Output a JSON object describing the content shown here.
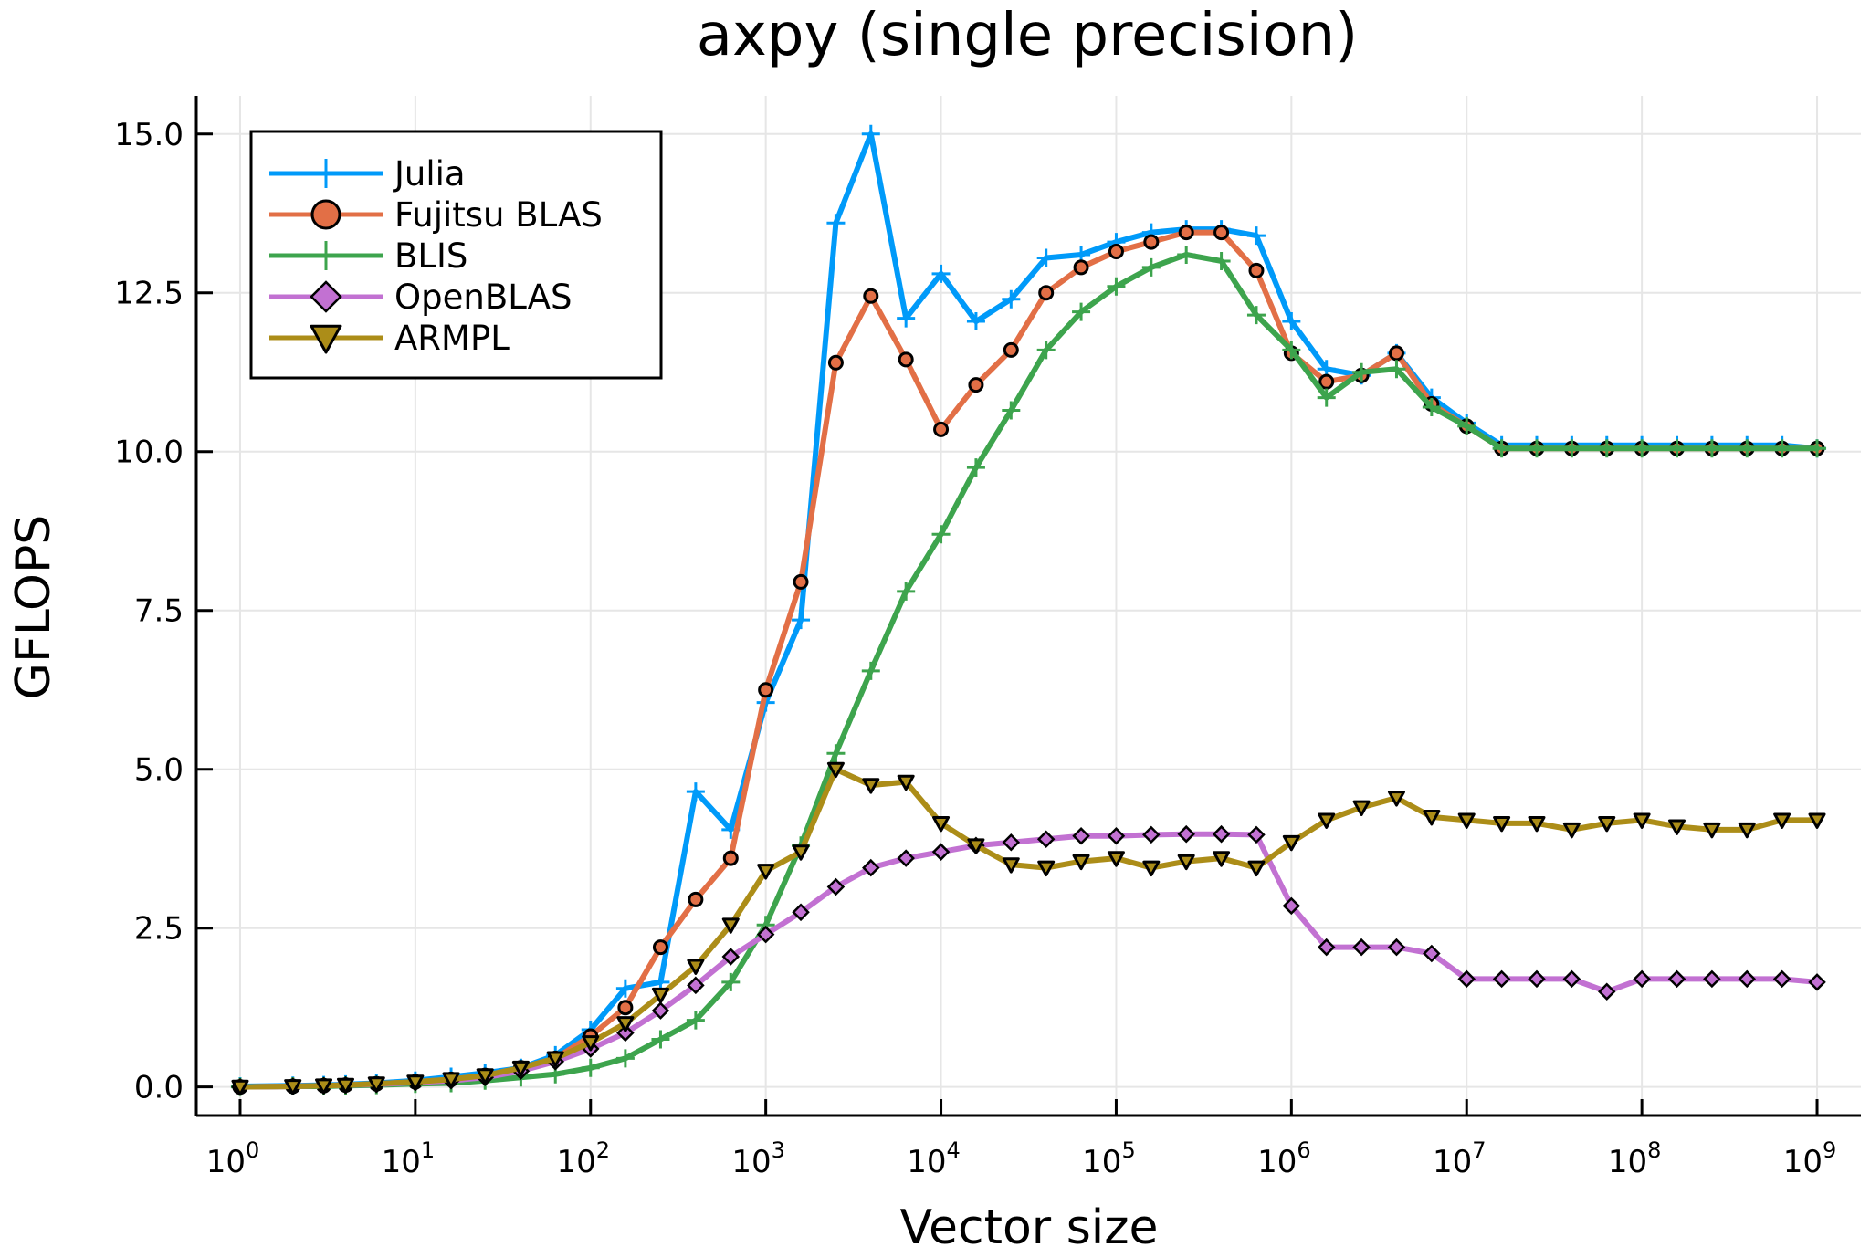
{
  "chart_data": {
    "type": "line",
    "title": "axpy (single precision)",
    "xlabel": "Vector size",
    "ylabel": "GFLOPS",
    "xscale": "log10",
    "xlim_exp": [
      -0.25,
      9.25
    ],
    "ylim": [
      -0.45,
      15.6
    ],
    "x_tick_base": "10",
    "x_tick_exponents": [
      "0",
      "1",
      "2",
      "3",
      "4",
      "5",
      "6",
      "7",
      "8",
      "9"
    ],
    "y_ticks": [
      0,
      2.5,
      5,
      7.5,
      10,
      12.5,
      15
    ],
    "y_tick_labels": [
      "0.0",
      "2.5",
      "5.0",
      "7.5",
      "10.0",
      "12.5",
      "15.0"
    ],
    "grid": true,
    "legend_position": "top-left",
    "x": [
      1,
      2,
      3,
      4,
      6,
      10,
      16,
      25,
      40,
      63,
      100,
      158,
      251,
      398,
      631,
      1000,
      1585,
      2512,
      3981,
      6310,
      10000,
      15849,
      25119,
      39811,
      63096,
      100000,
      158489,
      251189,
      398107,
      630957,
      1000000,
      1584893,
      2511886,
      3981072,
      6309573,
      10000000,
      15848932,
      25118864,
      39810717,
      63095734,
      100000000,
      158489319,
      251188643,
      398107171,
      630957344,
      1000000000
    ],
    "series": [
      {
        "name": "Julia",
        "color": "#009af9",
        "marker": "plus",
        "values": [
          0.01,
          0.02,
          0.03,
          0.04,
          0.06,
          0.1,
          0.16,
          0.22,
          0.3,
          0.5,
          0.9,
          1.55,
          1.65,
          4.65,
          4.05,
          6.05,
          7.35,
          13.6,
          15.0,
          12.1,
          12.8,
          12.05,
          12.4,
          13.05,
          13.1,
          13.3,
          13.45,
          13.5,
          13.5,
          13.4,
          12.05,
          11.3,
          11.2,
          11.55,
          10.85,
          10.45,
          10.1,
          10.1,
          10.1,
          10.1,
          10.1,
          10.1,
          10.1,
          10.1,
          10.1,
          10.05
        ]
      },
      {
        "name": "Fujitsu BLAS",
        "color": "#e26f46",
        "marker": "circle",
        "values": [
          0.0,
          0.01,
          0.02,
          0.03,
          0.05,
          0.08,
          0.12,
          0.18,
          0.3,
          0.45,
          0.8,
          1.25,
          2.2,
          2.95,
          3.6,
          6.25,
          7.95,
          11.4,
          12.45,
          11.45,
          10.35,
          11.05,
          11.6,
          12.5,
          12.9,
          13.15,
          13.3,
          13.45,
          13.45,
          12.85,
          11.55,
          11.1,
          11.2,
          11.55,
          10.75,
          10.4,
          10.05,
          10.05,
          10.05,
          10.05,
          10.05,
          10.05,
          10.05,
          10.05,
          10.05,
          10.05
        ]
      },
      {
        "name": "BLIS",
        "color": "#3da44d",
        "marker": "plus",
        "values": [
          0.0,
          0.01,
          0.01,
          0.02,
          0.03,
          0.05,
          0.06,
          0.1,
          0.15,
          0.2,
          0.3,
          0.45,
          0.75,
          1.05,
          1.65,
          2.55,
          3.8,
          5.25,
          6.55,
          7.8,
          8.7,
          9.75,
          10.65,
          11.6,
          12.2,
          12.6,
          12.9,
          13.1,
          13.0,
          12.15,
          11.6,
          10.85,
          11.25,
          11.3,
          10.7,
          10.4,
          10.05,
          10.05,
          10.05,
          10.05,
          10.05,
          10.05,
          10.05,
          10.05,
          10.05,
          10.05
        ]
      },
      {
        "name": "OpenBLAS",
        "color": "#c271d2",
        "marker": "diamond",
        "values": [
          0.0,
          0.01,
          0.02,
          0.03,
          0.04,
          0.07,
          0.1,
          0.15,
          0.25,
          0.4,
          0.6,
          0.85,
          1.2,
          1.6,
          2.05,
          2.4,
          2.75,
          3.15,
          3.45,
          3.6,
          3.7,
          3.8,
          3.85,
          3.9,
          3.95,
          3.95,
          3.97,
          3.98,
          3.98,
          3.97,
          2.85,
          2.2,
          2.2,
          2.2,
          2.1,
          1.7,
          1.7,
          1.7,
          1.7,
          1.5,
          1.7,
          1.7,
          1.7,
          1.7,
          1.7,
          1.65
        ]
      },
      {
        "name": "ARMPL",
        "color": "#ac8d18",
        "marker": "triangle-down",
        "values": [
          0.0,
          0.01,
          0.02,
          0.03,
          0.05,
          0.08,
          0.12,
          0.18,
          0.3,
          0.45,
          0.7,
          1.0,
          1.45,
          1.9,
          2.55,
          3.4,
          3.7,
          5.0,
          4.75,
          4.8,
          4.15,
          3.8,
          3.5,
          3.45,
          3.55,
          3.6,
          3.45,
          3.55,
          3.6,
          3.45,
          3.85,
          4.2,
          4.4,
          4.55,
          4.25,
          4.2,
          4.15,
          4.15,
          4.05,
          4.15,
          4.2,
          4.1,
          4.05,
          4.05,
          4.2,
          4.2
        ]
      }
    ]
  }
}
